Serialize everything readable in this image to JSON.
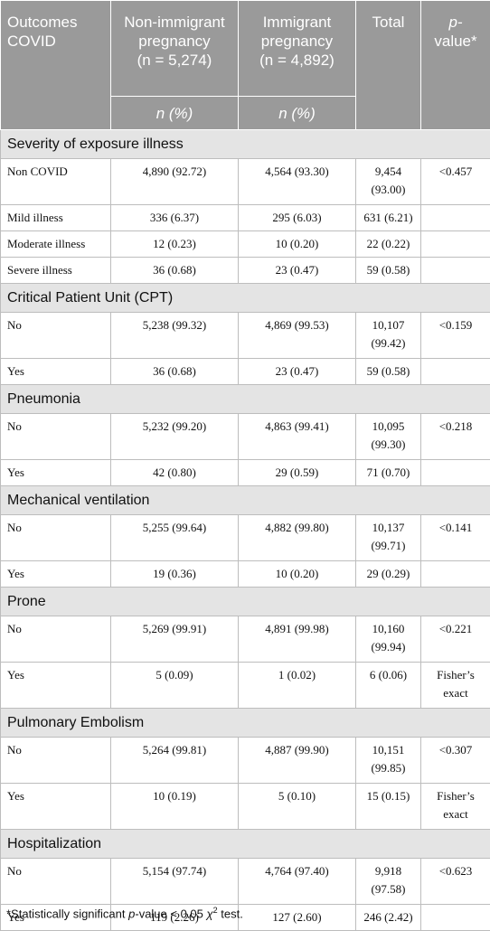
{
  "header": {
    "col1": "Outcomes COVID",
    "col2_a": "Non-immigrant pregnancy",
    "col2_n": "(n = 5,274)",
    "col3_a": "Immigrant pregnancy",
    "col3_n": "(n = 4,892)",
    "col4": "Total",
    "col5_a": "p-",
    "col5_b": "value*",
    "sub2": "n (%)",
    "sub3": "n (%)"
  },
  "sections": [
    {
      "title": "Severity of exposure illness",
      "rows": [
        {
          "label": "Non COVID",
          "non": "4,890 (92.72)",
          "imm": "4,564 (93.30)",
          "total": "9,454 (93.00)",
          "p": "<0.457"
        },
        {
          "label": "Mild illness",
          "non": "336 (6.37)",
          "imm": "295 (6.03)",
          "total": "631 (6.21)",
          "p": ""
        },
        {
          "label": "Moderate illness",
          "non": "12 (0.23)",
          "imm": "10 (0.20)",
          "total": "22 (0.22)",
          "p": ""
        },
        {
          "label": "Severe illness",
          "non": "36 (0.68)",
          "imm": "23 (0.47)",
          "total": "59 (0.58)",
          "p": ""
        }
      ]
    },
    {
      "title": "Critical Patient Unit (CPT)",
      "rows": [
        {
          "label": "No",
          "non": "5,238 (99.32)",
          "imm": "4,869 (99.53)",
          "total": "10,107 (99.42)",
          "p": "<0.159"
        },
        {
          "label": "Yes",
          "non": "36 (0.68)",
          "imm": "23 (0.47)",
          "total": "59 (0.58)",
          "p": ""
        }
      ]
    },
    {
      "title": "Pneumonia",
      "rows": [
        {
          "label": "No",
          "non": "5,232 (99.20)",
          "imm": "4,863 (99.41)",
          "total": "10,095 (99.30)",
          "p": "<0.218"
        },
        {
          "label": "Yes",
          "non": "42 (0.80)",
          "imm": "29 (0.59)",
          "total": "71 (0.70)",
          "p": ""
        }
      ]
    },
    {
      "title": "Mechanical ventilation",
      "rows": [
        {
          "label": "No",
          "non": "5,255 (99.64)",
          "imm": "4,882 (99.80)",
          "total": "10,137 (99.71)",
          "p": "<0.141"
        },
        {
          "label": "Yes",
          "non": "19 (0.36)",
          "imm": "10 (0.20)",
          "total": "29 (0.29)",
          "p": ""
        }
      ]
    },
    {
      "title": "Prone",
      "rows": [
        {
          "label": "No",
          "non": "5,269 (99.91)",
          "imm": "4,891 (99.98)",
          "total": "10,160 (99.94)",
          "p": "<0.221"
        },
        {
          "label": "Yes",
          "non": "5 (0.09)",
          "imm": "1 (0.02)",
          "total": "6 (0.06)",
          "p": "Fisher’s exact"
        }
      ]
    },
    {
      "title": "Pulmonary Embolism",
      "rows": [
        {
          "label": "No",
          "non": "5,264 (99.81)",
          "imm": "4,887 (99.90)",
          "total": "10,151 (99.85)",
          "p": "<0.307"
        },
        {
          "label": "Yes",
          "non": "10 (0.19)",
          "imm": "5 (0.10)",
          "total": "15 (0.15)",
          "p": "Fisher’s exact"
        }
      ]
    },
    {
      "title": "Hospitalization",
      "rows": [
        {
          "label": "No",
          "non": "5,154 (97.74)",
          "imm": "4,764 (97.40)",
          "total": "9,918 (97.58)",
          "p": "<0.623"
        },
        {
          "label": "Yes",
          "non": "119 (2.26)",
          "imm": "127 (2.60)",
          "total": "246 (2.42)",
          "p": ""
        }
      ]
    }
  ],
  "footnote": {
    "star": "*Statistically significant ",
    "p": "p",
    "mid": "-value < 0.05 ",
    "chi": "χ",
    "sup": "2",
    "end": " test."
  }
}
